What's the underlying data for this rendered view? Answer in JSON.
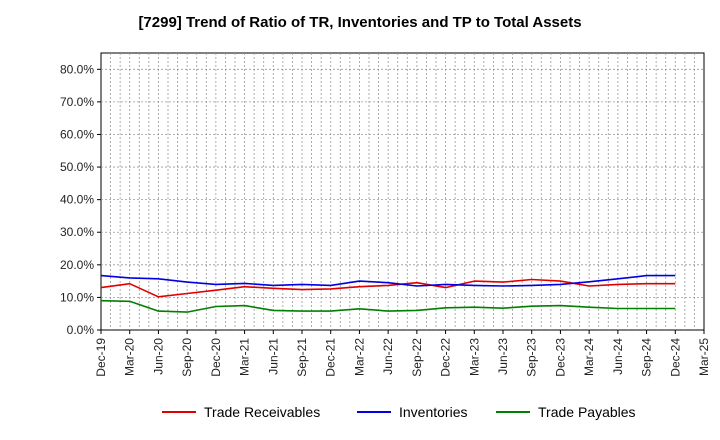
{
  "chart_data": {
    "type": "line",
    "title": "[7299]  Trend of Ratio of TR, Inventories and TP to Total Assets",
    "xlabel": "",
    "ylabel": "",
    "ylim": [
      0,
      0.85
    ],
    "y_ticks": [
      0,
      0.1,
      0.2,
      0.3,
      0.4,
      0.5,
      0.6,
      0.7,
      0.8
    ],
    "y_tick_labels": [
      "0.0%",
      "10.0%",
      "20.0%",
      "30.0%",
      "40.0%",
      "50.0%",
      "60.0%",
      "70.0%",
      "80.0%"
    ],
    "x_tick_labels": [
      "Dec-19",
      "Mar-20",
      "Jun-20",
      "Sep-20",
      "Dec-20",
      "Mar-21",
      "Jun-21",
      "Sep-21",
      "Dec-21",
      "Mar-22",
      "Jun-22",
      "Sep-22",
      "Dec-22",
      "Mar-23",
      "Jun-23",
      "Sep-23",
      "Dec-23",
      "Mar-24",
      "Jun-24",
      "Sep-24",
      "Dec-24",
      "Mar-25"
    ],
    "grid": true,
    "legend_position": "bottom",
    "categories": [
      "Dec-19",
      "Mar-20",
      "Jun-20",
      "Sep-20",
      "Dec-20",
      "Mar-21",
      "Jun-21",
      "Sep-21",
      "Dec-21",
      "Mar-22",
      "Jun-22",
      "Sep-22",
      "Dec-22",
      "Mar-23",
      "Jun-23",
      "Sep-23",
      "Dec-23",
      "Mar-24",
      "Jun-24",
      "Sep-24",
      "Dec-24"
    ],
    "series": [
      {
        "name": "Trade Receivables",
        "color": "#e00000",
        "values": [
          0.13,
          0.142,
          0.102,
          0.112,
          0.122,
          0.133,
          0.128,
          0.124,
          0.126,
          0.133,
          0.137,
          0.145,
          0.13,
          0.15,
          0.147,
          0.155,
          0.15,
          0.135,
          0.14,
          0.142,
          0.142
        ]
      },
      {
        "name": "Inventories",
        "color": "#0000e0",
        "values": [
          0.167,
          0.16,
          0.157,
          0.147,
          0.14,
          0.143,
          0.137,
          0.14,
          0.137,
          0.15,
          0.145,
          0.135,
          0.14,
          0.137,
          0.135,
          0.137,
          0.14,
          0.148,
          0.157,
          0.167,
          0.167
        ]
      },
      {
        "name": "Trade Payables",
        "color": "#008000",
        "values": [
          0.09,
          0.088,
          0.058,
          0.055,
          0.072,
          0.075,
          0.06,
          0.058,
          0.058,
          0.065,
          0.058,
          0.06,
          0.068,
          0.07,
          0.067,
          0.073,
          0.075,
          0.07,
          0.066,
          0.066,
          0.066
        ]
      }
    ]
  }
}
